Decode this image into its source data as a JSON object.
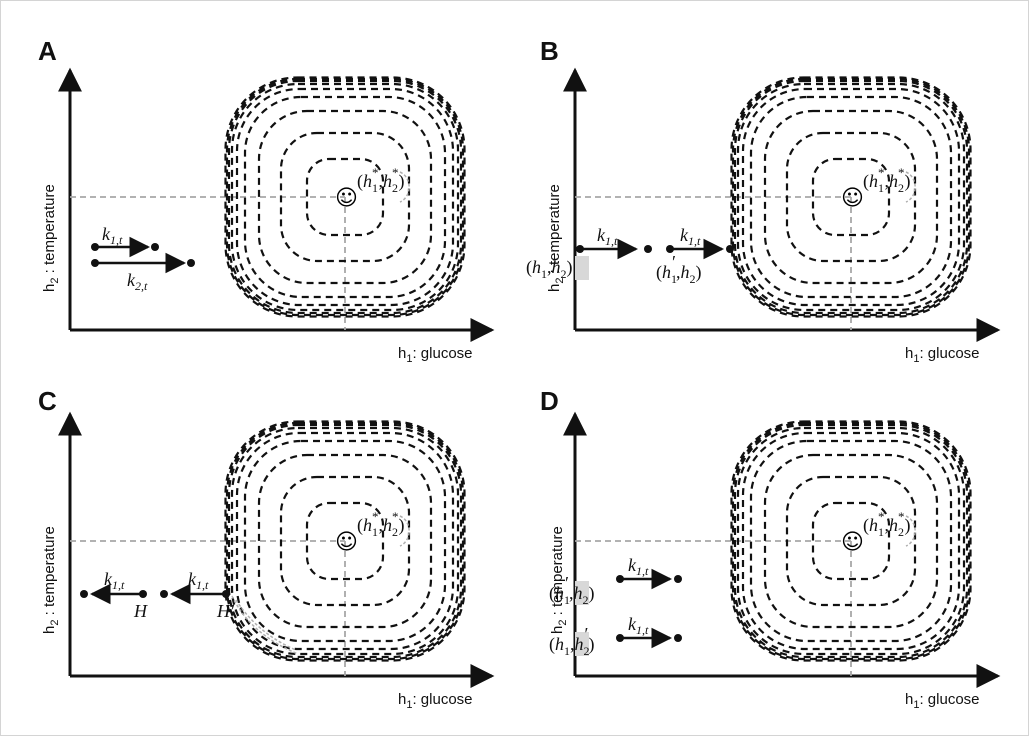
{
  "axes": {
    "y_label": "h",
    "y_label_sub": "2",
    "y_label_text": " : temperature",
    "x_label": "h",
    "x_label_sub": "1",
    "x_label_text": ": glucose"
  },
  "setpoint": {
    "face": "☺",
    "label": "(h*1, h*2)"
  },
  "panels": [
    {
      "letter": "A",
      "vectors": [
        {
          "label": "k1,t",
          "k": "k",
          "sub": "1,t"
        },
        {
          "label": "k2,t",
          "k": "k",
          "sub": "2,t"
        }
      ]
    },
    {
      "letter": "B",
      "states": [
        {
          "label": "(h1, h2)"
        },
        {
          "label": "(h′1, h2)"
        }
      ],
      "vectors": [
        {
          "label": "k1,t",
          "k": "k",
          "sub": "1,t"
        },
        {
          "label": "k1,t",
          "k": "k",
          "sub": "1,t"
        }
      ]
    },
    {
      "letter": "C",
      "states": [
        {
          "label": "H"
        },
        {
          "label": "H′"
        }
      ],
      "vectors": [
        {
          "label": "k1,t",
          "k": "k",
          "sub": "1,t"
        },
        {
          "label": "k1,t",
          "k": "k",
          "sub": "1,t"
        }
      ]
    },
    {
      "letter": "D",
      "states": [
        {
          "label": "(h′1, h2)"
        },
        {
          "label": "(h1, h′2)"
        }
      ],
      "vectors": [
        {
          "label": "k1,t",
          "k": "k",
          "sub": "1,t"
        },
        {
          "label": "k1,t",
          "k": "k",
          "sub": "1,t"
        }
      ]
    }
  ]
}
